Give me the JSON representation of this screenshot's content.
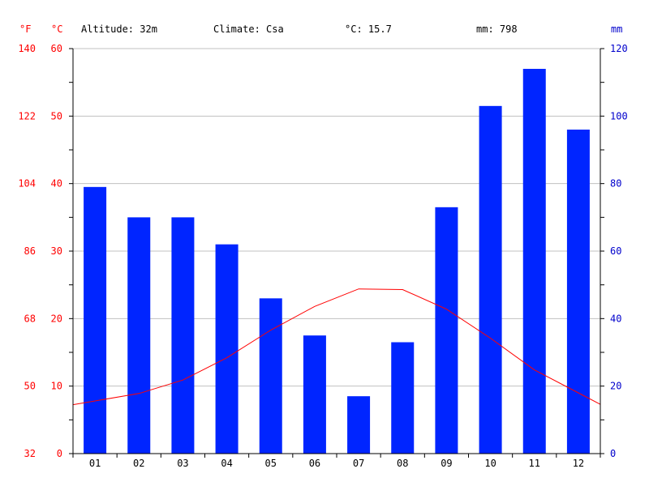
{
  "header": {
    "altitude": "Altitude: 32m",
    "climate": "Climate: Csa",
    "temp_avg": "°C: 15.7",
    "precip_total": "mm: 798"
  },
  "axis_units": {
    "fahrenheit": "°F",
    "celsius": "°C",
    "mm": "mm"
  },
  "colors": {
    "precip": "#0025ff",
    "temp": "#ff0000",
    "left_axis": "#ff0000",
    "right_axis": "#0000cc",
    "grid": "#c0c0c0"
  },
  "chart_data": {
    "type": "bar",
    "categories": [
      "01",
      "02",
      "03",
      "04",
      "05",
      "06",
      "07",
      "08",
      "09",
      "10",
      "11",
      "12"
    ],
    "series": [
      {
        "type": "bar",
        "axis": "mm",
        "color": "#0025ff",
        "values": [
          79,
          70,
          70,
          62,
          46,
          35,
          17,
          33,
          73,
          103,
          114,
          96
        ]
      },
      {
        "type": "line",
        "axis": "celsius",
        "color": "#ff0000",
        "values": [
          7.8,
          8.9,
          10.9,
          14.2,
          18.3,
          21.8,
          24.4,
          24.3,
          21.4,
          17.1,
          12.4,
          9.0
        ]
      }
    ],
    "celsius_axis": {
      "range": [
        0,
        60
      ],
      "ticks": [
        "0",
        "10",
        "20",
        "30",
        "40",
        "50",
        "60"
      ]
    },
    "fahrenheit_axis": {
      "range": [
        32,
        140
      ],
      "ticks": [
        "32",
        "50",
        "68",
        "86",
        "104",
        "122",
        "140"
      ]
    },
    "mm_axis": {
      "range": [
        0,
        120
      ],
      "ticks": [
        "0",
        "20",
        "40",
        "60",
        "80",
        "100",
        "120"
      ]
    },
    "grid": true
  }
}
